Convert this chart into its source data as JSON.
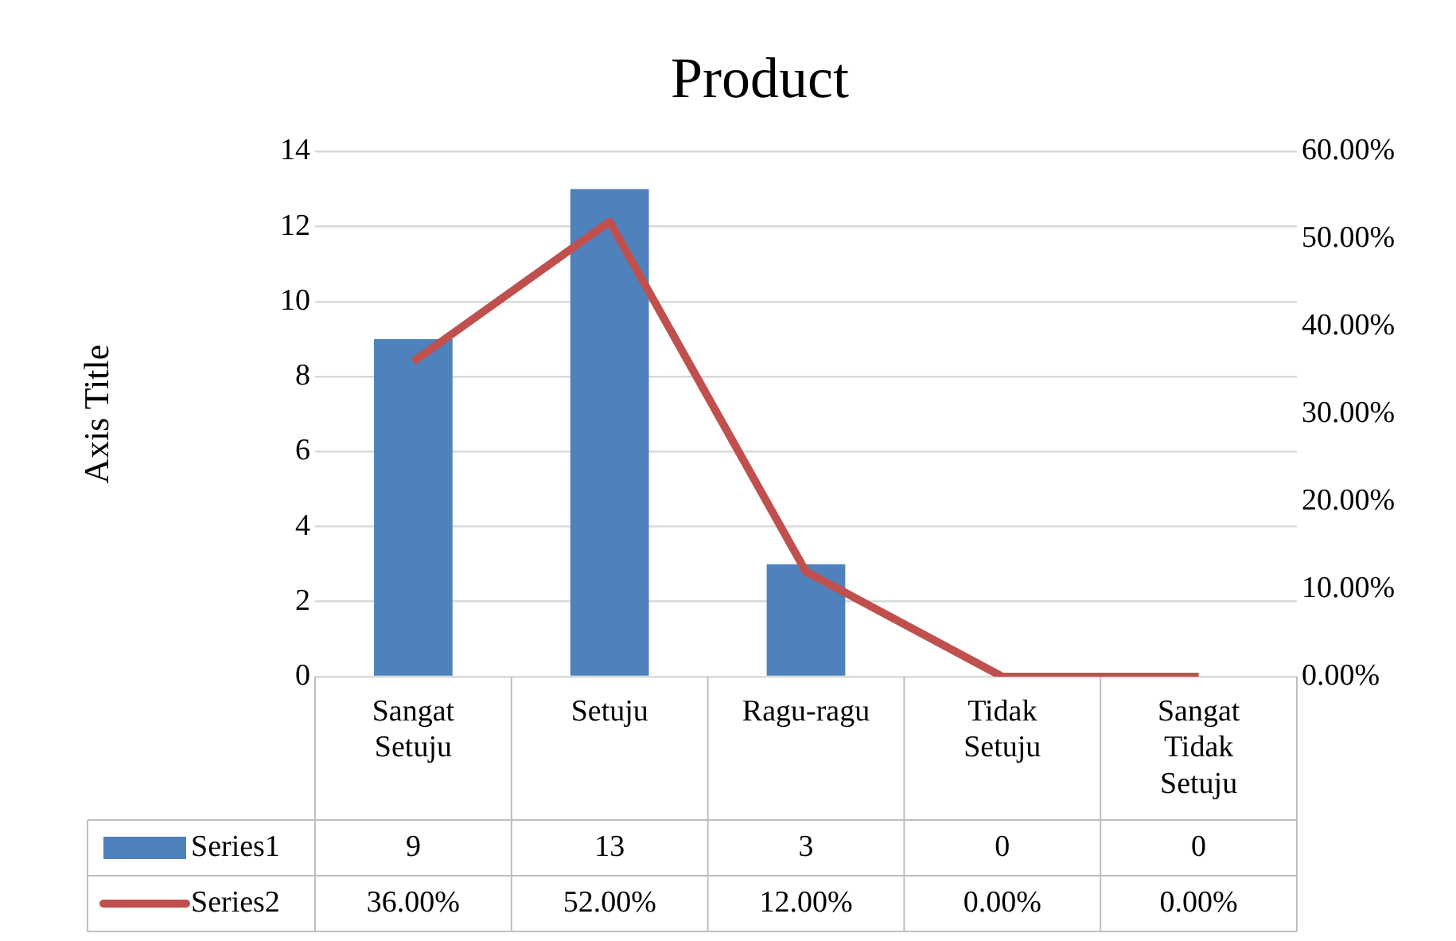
{
  "chart_data": {
    "type": "bar",
    "title": "Product",
    "ylabel": "Axis Title",
    "categories": [
      "Sangat Setuju",
      "Setuju",
      "Ragu-ragu",
      "Tidak Setuju",
      "Sangat Tidak Setuju"
    ],
    "series": [
      {
        "name": "Series1",
        "color": "#4f81bd",
        "values": [
          9,
          13,
          3,
          0,
          0
        ],
        "value_labels": [
          "9",
          "13",
          "3",
          "0",
          "0"
        ]
      },
      {
        "name": "Series2",
        "type": "line",
        "axis": "y2",
        "color": "#c0504d",
        "marker": "none",
        "values": [
          36,
          52,
          12,
          0,
          0
        ],
        "value_labels": [
          "36.00%",
          "52.00%",
          "12.00%",
          "0.00%",
          "0.00%"
        ]
      }
    ],
    "ylim": [
      0,
      14
    ],
    "yticks": [
      0,
      2,
      4,
      6,
      8,
      10,
      12,
      14
    ],
    "y2lim": [
      0,
      60
    ],
    "y2ticks": [
      {
        "value": 0,
        "label": "0.00%"
      },
      {
        "value": 10,
        "label": "10.00%"
      },
      {
        "value": 20,
        "label": "20.00%"
      },
      {
        "value": 30,
        "label": "30.00%"
      },
      {
        "value": 40,
        "label": "40.00%"
      },
      {
        "value": 50,
        "label": "50.00%"
      },
      {
        "value": 60,
        "label": "60.00%"
      }
    ],
    "grid": "y",
    "legend": "bottom"
  }
}
